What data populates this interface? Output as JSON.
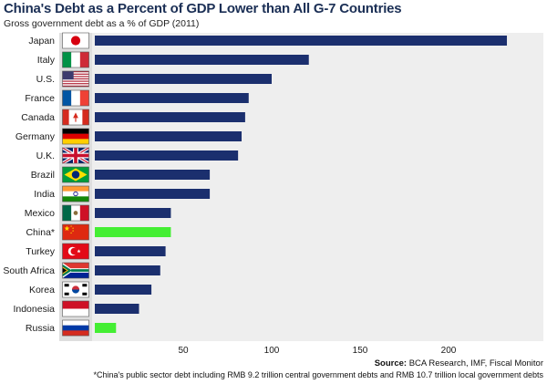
{
  "title": "China's Debt as a Percent of GDP Lower than All G-7 Countries",
  "subtitle": "Gross government debt as a % of GDP (2011)",
  "source_label": "Source:",
  "source_text": "BCA Research, IMF, Fiscal Monitor",
  "footnote": "*China's public sector debt including RMB 9.2 trillion central government debts and RMB 10.7 trillion local government debts",
  "colors": {
    "bar_default": "#1b2f6e",
    "bar_highlight": "#44ee33",
    "panel_background": "#eeeeee",
    "flag_background": "#dedede"
  },
  "chart_data": {
    "type": "bar",
    "orientation": "horizontal",
    "title": "China's Debt as a Percent of GDP Lower than All G-7 Countries",
    "subtitle": "Gross government debt as a % of GDP (2011)",
    "categories": [
      "Japan",
      "Italy",
      "U.S.",
      "France",
      "Canada",
      "Germany",
      "U.K.",
      "Brazil",
      "India",
      "Mexico",
      "China*",
      "Turkey",
      "South Africa",
      "Korea",
      "Indonesia",
      "Russia"
    ],
    "values": [
      233,
      121,
      100,
      87,
      85,
      83,
      81,
      65,
      65,
      43,
      43,
      40,
      37,
      32,
      25,
      12
    ],
    "highlighted": [
      "China*",
      "Russia"
    ],
    "flags": [
      "japan-flag",
      "italy-flag",
      "usa-flag",
      "france-flag",
      "canada-flag",
      "germany-flag",
      "uk-flag",
      "brazil-flag",
      "india-flag",
      "mexico-flag",
      "china-flag",
      "turkey-flag",
      "south-africa-flag",
      "korea-flag",
      "indonesia-flag",
      "russia-flag"
    ],
    "x_ticks": [
      50,
      100,
      150,
      200
    ],
    "xlim": [
      0,
      250
    ],
    "grid": false,
    "legend": "none"
  }
}
